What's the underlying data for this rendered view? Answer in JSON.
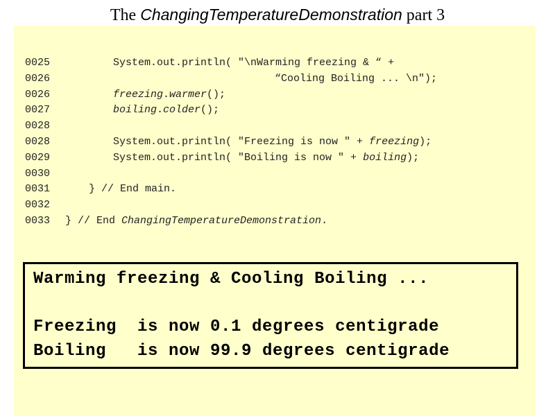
{
  "title": {
    "prefix": "The ",
    "name": "ChangingTemperatureDemonstration",
    "suffix": " part 3"
  },
  "code": {
    "lines": [
      {
        "num": "0025",
        "indent": 2,
        "parts": [
          {
            "t": "System.out.println( \"\\nWarming freezing & “ +"
          }
        ]
      },
      {
        "num": "0026",
        "indent": 3,
        "parts": [
          {
            "t": "“Cooling Boiling ... \\n\");"
          }
        ]
      },
      {
        "num": "0026",
        "indent": 2,
        "parts": [
          {
            "t": "freezing",
            "i": true
          },
          {
            "t": "."
          },
          {
            "t": "warmer",
            "i": true
          },
          {
            "t": "();"
          }
        ]
      },
      {
        "num": "0027",
        "indent": 2,
        "parts": [
          {
            "t": "boiling",
            "i": true
          },
          {
            "t": "."
          },
          {
            "t": "colder",
            "i": true
          },
          {
            "t": "();"
          }
        ]
      },
      {
        "num": "0028",
        "indent": 0,
        "parts": []
      },
      {
        "num": "0028",
        "indent": 2,
        "parts": [
          {
            "t": "System.out.println( \"Freezing is now \" + "
          },
          {
            "t": "freezing",
            "i": true
          },
          {
            "t": ");"
          }
        ]
      },
      {
        "num": "0029",
        "indent": 2,
        "parts": [
          {
            "t": "System.out.println( \"Boiling is now \" + "
          },
          {
            "t": "boiling",
            "i": true
          },
          {
            "t": ");"
          }
        ]
      },
      {
        "num": "0030",
        "indent": 0,
        "parts": []
      },
      {
        "num": "0031",
        "indent": 1,
        "parts": [
          {
            "t": "} // End main."
          }
        ]
      },
      {
        "num": "0032",
        "indent": 0,
        "parts": []
      },
      {
        "num": "0033",
        "indent": 0,
        "parts": [
          {
            "t": "} // End "
          },
          {
            "t": "ChangingTemperatureDemonstration",
            "i": true
          },
          {
            "t": "."
          }
        ]
      }
    ]
  },
  "output": {
    "line1": "Warming freezing & Cooling Boiling ...",
    "line2": "Freezing  is now 0.1 degrees centigrade",
    "line3": "Boiling   is now 99.9 degrees centigrade"
  }
}
